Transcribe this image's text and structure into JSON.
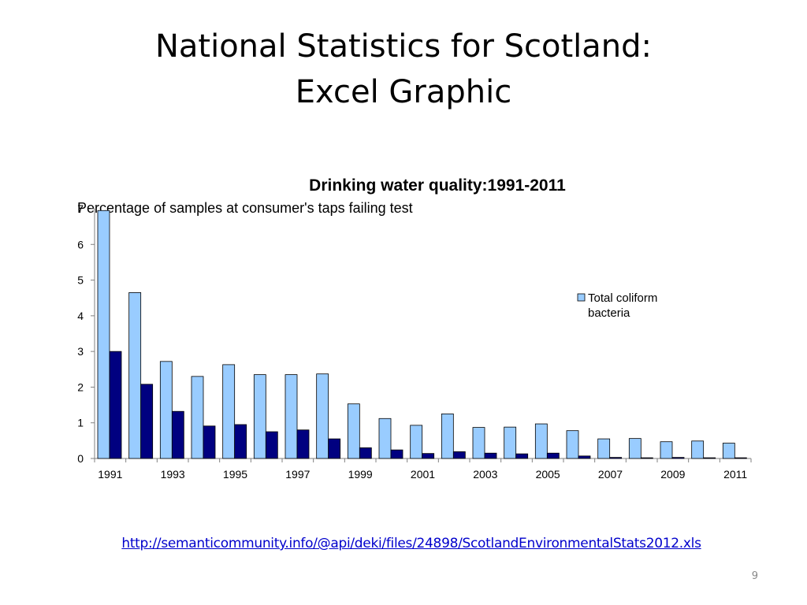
{
  "slide": {
    "title_line1": "National Statistics for Scotland:",
    "title_line2": "Excel Graphic",
    "source_link": "http://semanticommunity.info/@api/deki/files/24898/ScotlandEnvironmentalStats2012.xls",
    "page_number": "9"
  },
  "colors": {
    "series_light": "#99ccff",
    "series_dark": "#000080",
    "link": "#0000cc"
  },
  "chart_data": {
    "type": "bar",
    "title": "Drinking water quality:1991-2011",
    "subtitle": "Percentage of samples at consumer's taps failing test",
    "xlabel": "",
    "ylabel": "",
    "ylim": [
      0,
      7
    ],
    "yticks": [
      0,
      1,
      2,
      3,
      4,
      5,
      6,
      7
    ],
    "categories": [
      "1991",
      "1992",
      "1993",
      "1994",
      "1995",
      "1996",
      "1997",
      "1998",
      "1999",
      "2000",
      "2001",
      "2002",
      "2003",
      "2004",
      "2005",
      "2006",
      "2007",
      "2008",
      "2009",
      "2010",
      "2011"
    ],
    "x_tick_labels": [
      "1991",
      "1993",
      "1995",
      "1997",
      "1999",
      "2001",
      "2003",
      "2005",
      "2007",
      "2009",
      "2011"
    ],
    "legend_position": "right",
    "grid": false,
    "series": [
      {
        "name": "Total coliform bacteria",
        "color": "#99ccff",
        "values": [
          6.95,
          4.65,
          2.72,
          2.3,
          2.63,
          2.35,
          2.35,
          2.37,
          1.53,
          1.12,
          0.93,
          1.25,
          0.87,
          0.88,
          0.97,
          0.78,
          0.55,
          0.56,
          0.47,
          0.49,
          0.43
        ]
      },
      {
        "color": "#000080",
        "values": [
          3.0,
          2.08,
          1.32,
          0.91,
          0.95,
          0.75,
          0.8,
          0.55,
          0.3,
          0.24,
          0.14,
          0.19,
          0.15,
          0.13,
          0.15,
          0.07,
          0.03,
          0.02,
          0.03,
          0.02,
          0.02
        ]
      }
    ]
  }
}
